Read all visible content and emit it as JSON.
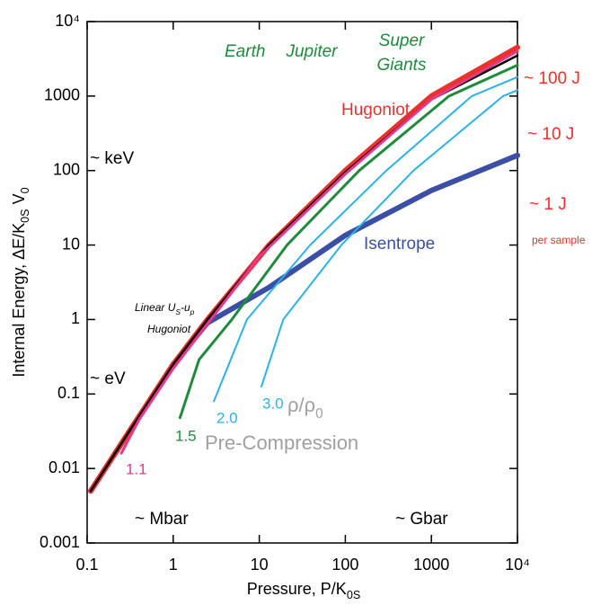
{
  "chart_data": {
    "type": "line",
    "log_x": true,
    "log_y": true,
    "xlim": [
      0.1,
      10000
    ],
    "ylim": [
      0.001,
      10000
    ],
    "xticks": [
      0.1,
      1,
      10,
      100,
      1000,
      {
        "value": 10000,
        "label": "10⁴"
      }
    ],
    "yticks": [
      0.001,
      0.01,
      0.1,
      1,
      10,
      100,
      1000,
      {
        "value": 10000,
        "label": "10⁴"
      }
    ],
    "x_label": [
      {
        "text": "Pressure,  P/K"
      },
      {
        "text": "0S",
        "sub": true
      }
    ],
    "y_label": [
      {
        "text": "Internal Energy,  ΔE/K"
      },
      {
        "text": "0S",
        "sub": true
      },
      {
        "text": " V"
      },
      {
        "text": "0",
        "sub": true
      }
    ],
    "series": [
      {
        "name": "Isentrope",
        "color": "#3b4fa6",
        "x": [
          0.11,
          1,
          2.5,
          13,
          100,
          1000,
          10000
        ],
        "values": [
          0.005,
          0.25,
          0.9,
          2.7,
          13.5,
          54,
          160
        ]
      },
      {
        "name": "3.0",
        "color": "#2bb3e6",
        "x": [
          10.6,
          19,
          90,
          620,
          6800,
          10000
        ],
        "values": [
          0.126,
          1,
          10,
          100,
          1000,
          1200
        ]
      },
      {
        "name": "2.0",
        "color": "#2bb3e6",
        "x": [
          2.97,
          7.2,
          39,
          300,
          2950,
          10000
        ],
        "values": [
          0.08,
          1,
          10,
          100,
          1000,
          1800
        ]
      },
      {
        "name": "1.5",
        "color": "#1e8c3c",
        "x": [
          1.2,
          2,
          4.8,
          21,
          145,
          1600,
          10000
        ],
        "values": [
          0.048,
          0.29,
          1,
          10,
          100,
          1000,
          2600
        ]
      },
      {
        "name": "Hugoniot",
        "color": "#e8322b",
        "x": [
          0.11,
          0.3,
          1,
          2.5,
          13,
          100,
          1000,
          10000
        ],
        "values": [
          0.005,
          0.03,
          0.25,
          1,
          10,
          100,
          1000,
          4500
        ]
      },
      {
        "color": "#000000",
        "x": [
          0.11,
          0.3,
          1,
          2.5,
          13,
          100,
          1000,
          10000
        ],
        "values": [
          0.005,
          0.03,
          0.25,
          1,
          10,
          95,
          900,
          3500
        ]
      },
      {
        "name": "1.1",
        "color": "#e6378a",
        "x": [
          0.25,
          0.4,
          1,
          10,
          100,
          1000,
          10000
        ],
        "values": [
          0.016,
          0.045,
          0.22,
          7,
          90,
          900,
          4000
        ]
      }
    ],
    "annotations": {
      "earth": "Earth",
      "jupiter": "Jupiter",
      "super_giants": [
        "Super",
        "Giants"
      ],
      "kev": "~ keV",
      "ev": "~ eV",
      "mbar": "~ Mbar",
      "gbar": "~ Gbar",
      "j100": "~ 100 J",
      "j10": "~ 10 J",
      "j1": "~ 1 J",
      "per_sample": "per sample",
      "pre_compression": "Pre-Compression",
      "density_ratio": [
        {
          "text": "ρ/ρ"
        },
        {
          "text": "0",
          "sub": true
        }
      ],
      "linear_label": [
        {
          "text": "Linear U"
        },
        {
          "text": "S",
          "sub": true
        },
        {
          "text": "-u"
        },
        {
          "text": "p",
          "sub": true
        }
      ],
      "linear_label_line2": "Hugoniot"
    }
  }
}
